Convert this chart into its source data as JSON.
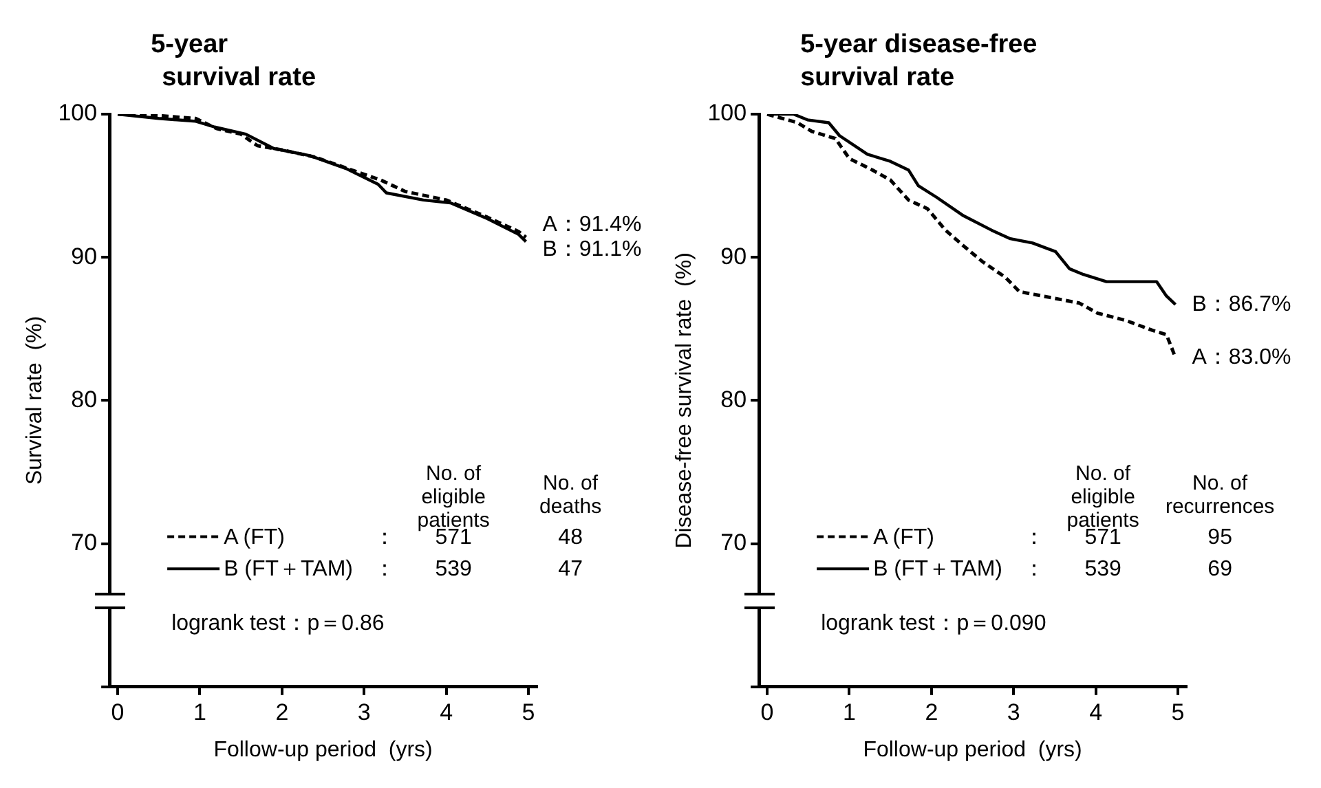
{
  "chart_data": [
    {
      "type": "line",
      "title": "5-year\nsurvival rate",
      "xlabel": "Follow-up period  (yrs)",
      "ylabel": "Survival rate  (%)",
      "xlim": [
        -0.1,
        5.1
      ],
      "xticks": [
        0,
        1,
        2,
        3,
        4,
        5
      ],
      "ylim": [
        60,
        100
      ],
      "yticks": [
        {
          "value": 60,
          "label": null
        },
        70,
        80,
        90,
        100
      ],
      "legend": "bottom",
      "grid": false,
      "series": [
        {
          "name": "A (FT)",
          "color": "#000000",
          "line_style": "dashed",
          "x": [
            0,
            0.5,
            0.95,
            1.2,
            1.5,
            1.7,
            2.0,
            2.4,
            2.8,
            3.2,
            3.5,
            4.0,
            4.5,
            4.88,
            4.97
          ],
          "values": [
            100,
            99.9,
            99.7,
            99.0,
            98.6,
            97.8,
            97.5,
            97.0,
            96.2,
            95.4,
            94.6,
            94.0,
            92.8,
            91.8,
            91.4
          ]
        },
        {
          "name": "B (FT＋TAM)",
          "color": "#000000",
          "line_style": "solid",
          "x": [
            0,
            0.5,
            0.95,
            1.18,
            1.56,
            1.9,
            2.34,
            2.78,
            3.17,
            3.27,
            3.72,
            4.05,
            4.5,
            4.88,
            4.97
          ],
          "values": [
            100,
            99.7,
            99.5,
            99.1,
            98.6,
            97.6,
            97.1,
            96.2,
            95.1,
            94.5,
            94.0,
            93.8,
            92.7,
            91.6,
            91.1
          ]
        }
      ],
      "annotations": [
        "A：91.4%",
        "B：91.1%",
        "No. of eligible patients",
        "No. of deaths",
        "：",
        "571",
        "48",
        "：",
        "539",
        "47",
        "logrank test：p＝0.86"
      ]
    },
    {
      "type": "line",
      "title": "5-year disease-free\nsurvival rate",
      "xlabel": "Follow-up period  (yrs)",
      "ylabel": "Disease-free survival rate  (%)",
      "xlim": [
        -0.1,
        5.1
      ],
      "xticks": [
        0,
        1,
        2,
        3,
        4,
        5
      ],
      "ylim": [
        60,
        100
      ],
      "yticks": [
        {
          "value": 60,
          "label": null
        },
        70,
        80,
        90,
        100
      ],
      "legend": "bottom",
      "grid": false,
      "series": [
        {
          "name": "A (FT)",
          "color": "#000000",
          "line_style": "dashed",
          "x": [
            0,
            0.37,
            0.54,
            0.83,
            1.0,
            1.28,
            1.5,
            1.72,
            1.95,
            2.17,
            2.39,
            2.62,
            2.9,
            3.07,
            3.35,
            3.8,
            4.02,
            4.36,
            4.69,
            4.86,
            4.97
          ],
          "values": [
            100,
            99.4,
            98.8,
            98.3,
            96.9,
            96.1,
            95.4,
            94.0,
            93.4,
            91.9,
            90.8,
            89.7,
            88.6,
            87.6,
            87.3,
            86.8,
            86.1,
            85.6,
            84.9,
            84.6,
            83.0
          ]
        },
        {
          "name": "B (FT＋TAM)",
          "color": "#000000",
          "line_style": "solid",
          "x": [
            0,
            0.32,
            0.49,
            0.75,
            0.88,
            1.22,
            1.5,
            1.72,
            1.84,
            2.06,
            2.39,
            2.73,
            2.96,
            3.23,
            3.51,
            3.68,
            3.85,
            4.13,
            4.74,
            4.86,
            4.97
          ],
          "values": [
            100,
            100,
            99.6,
            99.4,
            98.5,
            97.2,
            96.7,
            96.1,
            95.0,
            94.2,
            92.9,
            91.9,
            91.3,
            91.0,
            90.4,
            89.2,
            88.8,
            88.3,
            88.3,
            87.3,
            86.7
          ]
        }
      ],
      "annotations": [
        "B：86.7%",
        "A：83.0%",
        "No. of eligible patients",
        "No. of recurrences",
        "：",
        "571",
        "95",
        "：",
        "539",
        "69",
        "logrank test：p＝0.090"
      ]
    }
  ]
}
